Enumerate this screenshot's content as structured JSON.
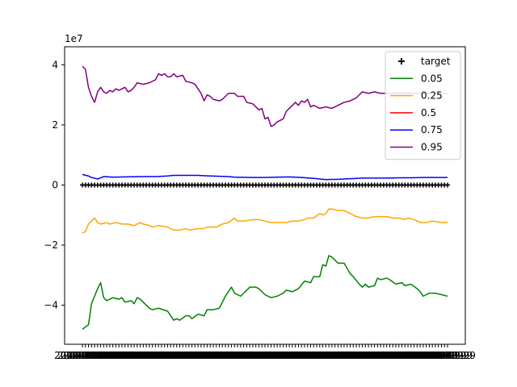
{
  "chart_data": {
    "type": "line",
    "offset_label": "1e7",
    "ylim": [
      -5.3,
      4.6
    ],
    "yticks": [
      -4,
      -2,
      0,
      2,
      4
    ],
    "ytick_labels": [
      "−4",
      "−2",
      "0",
      "2",
      "4"
    ],
    "x_count": 121,
    "x_tick_label_text": "2019-01-29",
    "grid": false,
    "legend_position": "upper right",
    "legend": [
      "target",
      "0.05",
      "0.25",
      "0.5",
      "0.75",
      "0.95"
    ],
    "series": [
      {
        "name": "target",
        "style": "marker-plus",
        "color": "#000000",
        "anchors": [
          [
            0,
            0.0
          ],
          [
            120,
            0.0
          ]
        ]
      },
      {
        "name": "0.05",
        "color": "#008000",
        "anchors": [
          [
            0,
            -4.8
          ],
          [
            2,
            -4.65
          ],
          [
            3,
            -3.95
          ],
          [
            5,
            -3.45
          ],
          [
            6,
            -3.25
          ],
          [
            7,
            -3.75
          ],
          [
            8,
            -3.85
          ],
          [
            10,
            -3.75
          ],
          [
            12,
            -3.8
          ],
          [
            13,
            -3.75
          ],
          [
            14,
            -3.9
          ],
          [
            16,
            -3.85
          ],
          [
            17,
            -3.95
          ],
          [
            18,
            -3.75
          ],
          [
            19,
            -3.8
          ],
          [
            22,
            -4.1
          ],
          [
            23,
            -4.15
          ],
          [
            25,
            -4.1
          ],
          [
            28,
            -4.2
          ],
          [
            30,
            -4.5
          ],
          [
            31,
            -4.45
          ],
          [
            32,
            -4.5
          ],
          [
            34,
            -4.35
          ],
          [
            35,
            -4.35
          ],
          [
            36,
            -4.45
          ],
          [
            38,
            -4.3
          ],
          [
            40,
            -4.35
          ],
          [
            41,
            -4.15
          ],
          [
            43,
            -4.15
          ],
          [
            45,
            -4.1
          ],
          [
            47,
            -3.7
          ],
          [
            49,
            -3.4
          ],
          [
            50,
            -3.6
          ],
          [
            52,
            -3.7
          ],
          [
            55,
            -3.4
          ],
          [
            57,
            -3.4
          ],
          [
            58,
            -3.45
          ],
          [
            60,
            -3.65
          ],
          [
            62,
            -3.75
          ],
          [
            64,
            -3.7
          ],
          [
            66,
            -3.6
          ],
          [
            67,
            -3.5
          ],
          [
            69,
            -3.55
          ],
          [
            71,
            -3.45
          ],
          [
            73,
            -3.2
          ],
          [
            75,
            -3.25
          ],
          [
            76,
            -3.05
          ],
          [
            78,
            -3.05
          ],
          [
            79,
            -2.65
          ],
          [
            80,
            -2.7
          ],
          [
            81,
            -2.35
          ],
          [
            82,
            -2.4
          ],
          [
            84,
            -2.6
          ],
          [
            86,
            -2.6
          ],
          [
            88,
            -2.95
          ],
          [
            89,
            -3.05
          ],
          [
            91,
            -3.3
          ],
          [
            92,
            -3.4
          ],
          [
            93,
            -3.3
          ],
          [
            94,
            -3.4
          ],
          [
            96,
            -3.35
          ],
          [
            97,
            -3.1
          ],
          [
            98,
            -3.15
          ],
          [
            100,
            -3.1
          ],
          [
            101,
            -3.15
          ],
          [
            103,
            -3.3
          ],
          [
            105,
            -3.25
          ],
          [
            106,
            -3.35
          ],
          [
            108,
            -3.3
          ],
          [
            110,
            -3.45
          ],
          [
            111,
            -3.55
          ],
          [
            112,
            -3.7
          ],
          [
            114,
            -3.6
          ],
          [
            116,
            -3.6
          ],
          [
            118,
            -3.65
          ],
          [
            120,
            -3.7
          ]
        ]
      },
      {
        "name": "0.25",
        "color": "#FFA500",
        "anchors": [
          [
            0,
            -1.6
          ],
          [
            1,
            -1.55
          ],
          [
            2,
            -1.3
          ],
          [
            3,
            -1.2
          ],
          [
            4,
            -1.1
          ],
          [
            5,
            -1.25
          ],
          [
            6,
            -1.3
          ],
          [
            8,
            -1.25
          ],
          [
            9,
            -1.3
          ],
          [
            11,
            -1.25
          ],
          [
            13,
            -1.3
          ],
          [
            15,
            -1.3
          ],
          [
            17,
            -1.35
          ],
          [
            19,
            -1.25
          ],
          [
            20,
            -1.3
          ],
          [
            22,
            -1.35
          ],
          [
            23,
            -1.4
          ],
          [
            25,
            -1.35
          ],
          [
            28,
            -1.4
          ],
          [
            30,
            -1.5
          ],
          [
            32,
            -1.5
          ],
          [
            34,
            -1.45
          ],
          [
            35,
            -1.5
          ],
          [
            38,
            -1.45
          ],
          [
            40,
            -1.45
          ],
          [
            41,
            -1.4
          ],
          [
            44,
            -1.4
          ],
          [
            46,
            -1.3
          ],
          [
            48,
            -1.25
          ],
          [
            50,
            -1.1
          ],
          [
            51,
            -1.2
          ],
          [
            53,
            -1.2
          ],
          [
            56,
            -1.15
          ],
          [
            58,
            -1.15
          ],
          [
            60,
            -1.2
          ],
          [
            62,
            -1.25
          ],
          [
            65,
            -1.25
          ],
          [
            67,
            -1.25
          ],
          [
            69,
            -1.2
          ],
          [
            71,
            -1.2
          ],
          [
            73,
            -1.15
          ],
          [
            74,
            -1.1
          ],
          [
            76,
            -1.1
          ],
          [
            78,
            -0.95
          ],
          [
            79,
            -1.0
          ],
          [
            80,
            -0.95
          ],
          [
            81,
            -0.8
          ],
          [
            82,
            -0.8
          ],
          [
            84,
            -0.85
          ],
          [
            86,
            -0.85
          ],
          [
            88,
            -0.95
          ],
          [
            90,
            -1.05
          ],
          [
            92,
            -1.1
          ],
          [
            94,
            -1.1
          ],
          [
            96,
            -1.05
          ],
          [
            98,
            -1.05
          ],
          [
            100,
            -1.05
          ],
          [
            102,
            -1.1
          ],
          [
            104,
            -1.1
          ],
          [
            106,
            -1.15
          ],
          [
            107,
            -1.1
          ],
          [
            109,
            -1.15
          ],
          [
            111,
            -1.25
          ],
          [
            113,
            -1.25
          ],
          [
            115,
            -1.2
          ],
          [
            118,
            -1.25
          ],
          [
            120,
            -1.25
          ]
        ]
      },
      {
        "name": "0.5",
        "color": "#FF0000",
        "anchors": [
          [
            0,
            0.0
          ],
          [
            120,
            0.0
          ]
        ]
      },
      {
        "name": "0.75",
        "color": "#0000FF",
        "anchors": [
          [
            0,
            0.35
          ],
          [
            2,
            0.3
          ],
          [
            3,
            0.25
          ],
          [
            5,
            0.2
          ],
          [
            7,
            0.28
          ],
          [
            10,
            0.26
          ],
          [
            14,
            0.27
          ],
          [
            20,
            0.28
          ],
          [
            24,
            0.28
          ],
          [
            28,
            0.3
          ],
          [
            30,
            0.32
          ],
          [
            34,
            0.32
          ],
          [
            38,
            0.32
          ],
          [
            42,
            0.3
          ],
          [
            48,
            0.28
          ],
          [
            50,
            0.26
          ],
          [
            56,
            0.25
          ],
          [
            60,
            0.25
          ],
          [
            64,
            0.26
          ],
          [
            68,
            0.27
          ],
          [
            72,
            0.25
          ],
          [
            76,
            0.22
          ],
          [
            80,
            0.18
          ],
          [
            84,
            0.19
          ],
          [
            88,
            0.21
          ],
          [
            92,
            0.23
          ],
          [
            96,
            0.23
          ],
          [
            100,
            0.23
          ],
          [
            104,
            0.24
          ],
          [
            108,
            0.24
          ],
          [
            112,
            0.25
          ],
          [
            116,
            0.25
          ],
          [
            120,
            0.25
          ]
        ]
      },
      {
        "name": "0.95",
        "color": "#800080",
        "anchors": [
          [
            0,
            3.95
          ],
          [
            1,
            3.85
          ],
          [
            2,
            3.25
          ],
          [
            3,
            2.95
          ],
          [
            4,
            2.75
          ],
          [
            5,
            3.1
          ],
          [
            6,
            3.25
          ],
          [
            7,
            3.1
          ],
          [
            8,
            3.05
          ],
          [
            9,
            3.15
          ],
          [
            10,
            3.1
          ],
          [
            11,
            3.2
          ],
          [
            12,
            3.15
          ],
          [
            14,
            3.25
          ],
          [
            15,
            3.1
          ],
          [
            16,
            3.15
          ],
          [
            17,
            3.25
          ],
          [
            18,
            3.4
          ],
          [
            20,
            3.35
          ],
          [
            22,
            3.4
          ],
          [
            24,
            3.5
          ],
          [
            25,
            3.7
          ],
          [
            26,
            3.65
          ],
          [
            27,
            3.7
          ],
          [
            28,
            3.6
          ],
          [
            29,
            3.6
          ],
          [
            30,
            3.7
          ],
          [
            31,
            3.6
          ],
          [
            33,
            3.65
          ],
          [
            34,
            3.45
          ],
          [
            36,
            3.4
          ],
          [
            37,
            3.35
          ],
          [
            38,
            3.2
          ],
          [
            39,
            3.05
          ],
          [
            40,
            2.8
          ],
          [
            41,
            3.0
          ],
          [
            42,
            2.95
          ],
          [
            43,
            2.85
          ],
          [
            45,
            2.8
          ],
          [
            46,
            2.85
          ],
          [
            47,
            2.95
          ],
          [
            48,
            3.05
          ],
          [
            50,
            3.05
          ],
          [
            51,
            2.95
          ],
          [
            53,
            2.95
          ],
          [
            54,
            2.75
          ],
          [
            56,
            2.7
          ],
          [
            58,
            2.5
          ],
          [
            59,
            2.55
          ],
          [
            60,
            2.2
          ],
          [
            61,
            2.25
          ],
          [
            62,
            1.95
          ],
          [
            63,
            2.0
          ],
          [
            64,
            2.1
          ],
          [
            66,
            2.2
          ],
          [
            67,
            2.45
          ],
          [
            68,
            2.55
          ],
          [
            70,
            2.75
          ],
          [
            71,
            2.65
          ],
          [
            72,
            2.8
          ],
          [
            73,
            2.75
          ],
          [
            74,
            2.85
          ],
          [
            75,
            2.6
          ],
          [
            76,
            2.65
          ],
          [
            78,
            2.55
          ],
          [
            80,
            2.6
          ],
          [
            82,
            2.55
          ],
          [
            84,
            2.65
          ],
          [
            86,
            2.75
          ],
          [
            88,
            2.8
          ],
          [
            90,
            2.9
          ],
          [
            92,
            3.1
          ],
          [
            94,
            3.05
          ],
          [
            96,
            3.1
          ],
          [
            98,
            3.05
          ],
          [
            100,
            3.05
          ]
        ]
      }
    ]
  }
}
